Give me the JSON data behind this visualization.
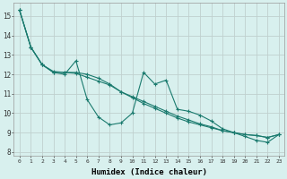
{
  "xlabel": "Humidex (Indice chaleur)",
  "xlim": [
    -0.5,
    23.5
  ],
  "ylim": [
    7.8,
    15.7
  ],
  "yticks": [
    8,
    9,
    10,
    11,
    12,
    13,
    14,
    15
  ],
  "xtick_labels": [
    "0",
    "1",
    "2",
    "3",
    "4",
    "5",
    "6",
    "7",
    "8",
    "9",
    "10",
    "11",
    "12",
    "13",
    "14",
    "15",
    "16",
    "17",
    "18",
    "19",
    "20",
    "21",
    "22",
    "23"
  ],
  "bg_color": "#d8f0ee",
  "line_color": "#1a7a6e",
  "grid_color": "#c0d0ce",
  "line1": [
    15.3,
    13.4,
    12.5,
    12.1,
    12.0,
    12.7,
    10.7,
    9.8,
    9.4,
    9.5,
    10.0,
    12.1,
    11.5,
    11.7,
    10.2,
    10.1,
    9.9,
    9.6,
    9.2,
    9.0,
    8.8,
    8.6,
    8.5,
    8.9
  ],
  "line2": [
    15.3,
    13.4,
    12.5,
    12.15,
    12.1,
    12.05,
    11.85,
    11.65,
    11.45,
    11.1,
    10.85,
    10.6,
    10.35,
    10.1,
    9.85,
    9.65,
    9.45,
    9.3,
    9.1,
    9.0,
    8.9,
    8.85,
    8.75,
    8.9
  ],
  "line3": [
    15.3,
    13.4,
    12.5,
    12.1,
    12.1,
    12.1,
    12.0,
    11.8,
    11.5,
    11.1,
    10.8,
    10.5,
    10.25,
    10.0,
    9.75,
    9.55,
    9.4,
    9.25,
    9.1,
    9.0,
    8.9,
    8.85,
    8.75,
    8.9
  ]
}
